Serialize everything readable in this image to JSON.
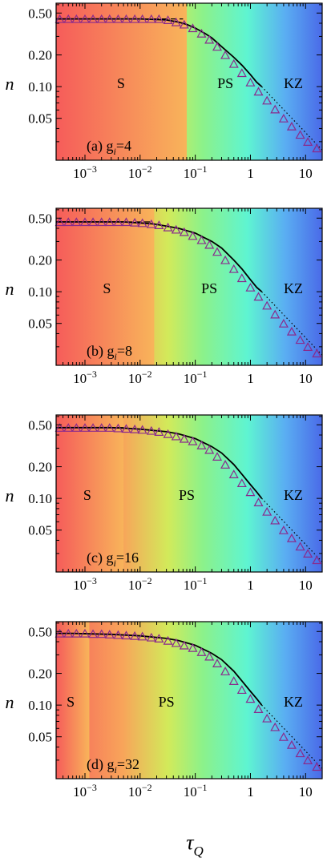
{
  "figure": {
    "xlabel": "τ",
    "xlabel_sub": "Q",
    "ylabel": "n"
  },
  "chart_data": [
    {
      "type": "line",
      "panel_label": "(a) g",
      "panel_label_sub": "i",
      "panel_label_value": "=4",
      "x_scale": "log",
      "y_scale": "log",
      "xlim": [
        0.0003,
        20
      ],
      "ylim": [
        0.02,
        0.62
      ],
      "x_ticks": [
        0.001,
        0.01,
        0.1,
        1,
        10
      ],
      "x_tick_labels": [
        {
          "base": "10",
          "exp": "−3"
        },
        {
          "base": "10",
          "exp": "−2"
        },
        {
          "base": "10",
          "exp": "−1"
        },
        {
          "base": "1",
          "exp": ""
        },
        {
          "base": "10",
          "exp": ""
        }
      ],
      "y_ticks": [
        0.05,
        0.1,
        0.2,
        0.5
      ],
      "y_tick_labels": [
        "0.05",
        "0.10",
        "0.20",
        "0.50"
      ],
      "regions": [
        {
          "label": "S",
          "from": 0.0003,
          "to": 0.07,
          "label_x": 0.0045
        },
        {
          "label": "PS",
          "from": 0.07,
          "to": 2,
          "label_x": 0.35
        },
        {
          "label": "KZ",
          "from": 2,
          "to": 20,
          "label_x": 6
        }
      ],
      "plateau": 0.44,
      "series": [
        {
          "kind": "solid",
          "x": [
            0.0003,
            0.001,
            0.005,
            0.01,
            0.03,
            0.05,
            0.07,
            0.1,
            0.15,
            0.2,
            0.3,
            0.5,
            0.7,
            1.0,
            1.3,
            1.6
          ],
          "y": [
            0.44,
            0.44,
            0.44,
            0.44,
            0.43,
            0.41,
            0.39,
            0.36,
            0.32,
            0.29,
            0.24,
            0.19,
            0.16,
            0.13,
            0.11,
            0.1
          ]
        },
        {
          "kind": "dashed",
          "x": [
            0.0003,
            0.001,
            0.005,
            0.01,
            0.03,
            0.06
          ],
          "y": [
            0.44,
            0.44,
            0.44,
            0.44,
            0.44,
            0.44
          ]
        },
        {
          "kind": "dotted",
          "x": [
            1.6,
            20
          ],
          "y": [
            0.1,
            0.025
          ]
        },
        {
          "kind": "triangles",
          "x": [
            0.00035,
            0.0005,
            0.0007,
            0.001,
            0.0014,
            0.002,
            0.0028,
            0.004,
            0.0056,
            0.008,
            0.011,
            0.016,
            0.022,
            0.032,
            0.045,
            0.063,
            0.09,
            0.13,
            0.18,
            0.25,
            0.35,
            0.5,
            0.7,
            1.0,
            1.4,
            2.0,
            2.8,
            4.0,
            5.6,
            8.0,
            11,
            16
          ],
          "y": [
            0.44,
            0.44,
            0.44,
            0.44,
            0.44,
            0.44,
            0.44,
            0.44,
            0.44,
            0.44,
            0.44,
            0.44,
            0.44,
            0.43,
            0.41,
            0.39,
            0.36,
            0.32,
            0.28,
            0.24,
            0.2,
            0.165,
            0.135,
            0.11,
            0.09,
            0.074,
            0.061,
            0.05,
            0.042,
            0.035,
            0.03,
            0.026
          ]
        }
      ]
    },
    {
      "type": "line",
      "panel_label": "(b) g",
      "panel_label_sub": "i",
      "panel_label_value": "=8",
      "x_scale": "log",
      "y_scale": "log",
      "xlim": [
        0.0003,
        20
      ],
      "ylim": [
        0.02,
        0.62
      ],
      "x_ticks": [
        0.001,
        0.01,
        0.1,
        1,
        10
      ],
      "x_tick_labels": [
        {
          "base": "10",
          "exp": "−3"
        },
        {
          "base": "10",
          "exp": "−2"
        },
        {
          "base": "10",
          "exp": "−1"
        },
        {
          "base": "1",
          "exp": ""
        },
        {
          "base": "10",
          "exp": ""
        }
      ],
      "y_ticks": [
        0.05,
        0.1,
        0.2,
        0.5
      ],
      "y_tick_labels": [
        "0.05",
        "0.10",
        "0.20",
        "0.50"
      ],
      "regions": [
        {
          "label": "S",
          "from": 0.0003,
          "to": 0.018,
          "label_x": 0.0025
        },
        {
          "label": "PS",
          "from": 0.018,
          "to": 2,
          "label_x": 0.18
        },
        {
          "label": "KZ",
          "from": 2,
          "to": 20,
          "label_x": 6
        }
      ],
      "plateau": 0.46,
      "series": [
        {
          "kind": "solid",
          "x": [
            0.0003,
            0.001,
            0.005,
            0.01,
            0.018,
            0.03,
            0.05,
            0.1,
            0.2,
            0.3,
            0.5,
            0.7,
            1.0,
            1.3,
            1.6
          ],
          "y": [
            0.46,
            0.46,
            0.46,
            0.45,
            0.44,
            0.42,
            0.4,
            0.36,
            0.3,
            0.26,
            0.2,
            0.165,
            0.13,
            0.11,
            0.1
          ]
        },
        {
          "kind": "dashed",
          "x": [
            0.0003,
            0.001,
            0.005,
            0.01,
            0.016
          ],
          "y": [
            0.46,
            0.46,
            0.46,
            0.46,
            0.46
          ]
        },
        {
          "kind": "dotted",
          "x": [
            1.6,
            20
          ],
          "y": [
            0.1,
            0.025
          ]
        },
        {
          "kind": "triangles",
          "x": [
            0.00035,
            0.0005,
            0.0007,
            0.001,
            0.0014,
            0.002,
            0.0028,
            0.004,
            0.0056,
            0.008,
            0.011,
            0.016,
            0.022,
            0.032,
            0.045,
            0.063,
            0.09,
            0.13,
            0.18,
            0.25,
            0.35,
            0.5,
            0.7,
            1.0,
            1.4,
            2.0,
            2.8,
            4.0,
            5.6,
            8.0,
            11,
            16
          ],
          "y": [
            0.46,
            0.46,
            0.46,
            0.46,
            0.46,
            0.46,
            0.46,
            0.46,
            0.46,
            0.455,
            0.45,
            0.44,
            0.43,
            0.41,
            0.39,
            0.37,
            0.34,
            0.31,
            0.28,
            0.24,
            0.2,
            0.165,
            0.135,
            0.11,
            0.09,
            0.074,
            0.061,
            0.05,
            0.042,
            0.035,
            0.03,
            0.026
          ]
        }
      ]
    },
    {
      "type": "line",
      "panel_label": "(c) g",
      "panel_label_sub": "i",
      "panel_label_value": "=16",
      "x_scale": "log",
      "y_scale": "log",
      "xlim": [
        0.0003,
        20
      ],
      "ylim": [
        0.02,
        0.62
      ],
      "x_ticks": [
        0.001,
        0.01,
        0.1,
        1,
        10
      ],
      "x_tick_labels": [
        {
          "base": "10",
          "exp": "−3"
        },
        {
          "base": "10",
          "exp": "−2"
        },
        {
          "base": "10",
          "exp": "−1"
        },
        {
          "base": "1",
          "exp": ""
        },
        {
          "base": "10",
          "exp": ""
        }
      ],
      "y_ticks": [
        0.05,
        0.1,
        0.2,
        0.5
      ],
      "y_tick_labels": [
        "0.05",
        "0.10",
        "0.20",
        "0.50"
      ],
      "regions": [
        {
          "label": "S",
          "from": 0.0003,
          "to": 0.005,
          "label_x": 0.0011
        },
        {
          "label": "PS",
          "from": 0.005,
          "to": 2,
          "label_x": 0.07
        },
        {
          "label": "KZ",
          "from": 2,
          "to": 20,
          "label_x": 6
        }
      ],
      "plateau": 0.47,
      "series": [
        {
          "kind": "solid",
          "x": [
            0.0003,
            0.001,
            0.003,
            0.005,
            0.01,
            0.03,
            0.05,
            0.1,
            0.2,
            0.3,
            0.5,
            0.7,
            1.0,
            1.3,
            1.6
          ],
          "y": [
            0.47,
            0.47,
            0.47,
            0.465,
            0.455,
            0.43,
            0.41,
            0.37,
            0.31,
            0.27,
            0.21,
            0.17,
            0.135,
            0.115,
            0.1
          ]
        },
        {
          "kind": "dashed",
          "x": [
            0.0003,
            0.001,
            0.003,
            0.005
          ],
          "y": [
            0.47,
            0.47,
            0.47,
            0.47
          ]
        },
        {
          "kind": "dotted",
          "x": [
            1.6,
            20
          ],
          "y": [
            0.1,
            0.025
          ]
        },
        {
          "kind": "triangles",
          "x": [
            0.00035,
            0.0005,
            0.0007,
            0.001,
            0.0014,
            0.002,
            0.0028,
            0.004,
            0.0056,
            0.008,
            0.011,
            0.016,
            0.022,
            0.032,
            0.045,
            0.063,
            0.09,
            0.13,
            0.18,
            0.25,
            0.35,
            0.5,
            0.7,
            1.0,
            1.4,
            2.0,
            2.8,
            4.0,
            5.6,
            8.0,
            11,
            16
          ],
          "y": [
            0.47,
            0.47,
            0.47,
            0.47,
            0.47,
            0.47,
            0.47,
            0.465,
            0.46,
            0.455,
            0.45,
            0.44,
            0.43,
            0.41,
            0.39,
            0.37,
            0.35,
            0.32,
            0.29,
            0.25,
            0.21,
            0.17,
            0.14,
            0.115,
            0.092,
            0.075,
            0.062,
            0.05,
            0.042,
            0.035,
            0.03,
            0.026
          ]
        }
      ]
    },
    {
      "type": "line",
      "panel_label": "(d) g",
      "panel_label_sub": "i",
      "panel_label_value": "=32",
      "x_scale": "log",
      "y_scale": "log",
      "xlim": [
        0.0003,
        20
      ],
      "ylim": [
        0.02,
        0.62
      ],
      "x_ticks": [
        0.001,
        0.01,
        0.1,
        1,
        10
      ],
      "x_tick_labels": [
        {
          "base": "10",
          "exp": "−3"
        },
        {
          "base": "10",
          "exp": "−2"
        },
        {
          "base": "10",
          "exp": "−1"
        },
        {
          "base": "1",
          "exp": ""
        },
        {
          "base": "10",
          "exp": ""
        }
      ],
      "y_ticks": [
        0.05,
        0.1,
        0.2,
        0.5
      ],
      "y_tick_labels": [
        "0.05",
        "0.10",
        "0.20",
        "0.50"
      ],
      "regions": [
        {
          "label": "S",
          "from": 0.0003,
          "to": 0.0012,
          "label_x": 0.00055
        },
        {
          "label": "PS",
          "from": 0.0012,
          "to": 2,
          "label_x": 0.03
        },
        {
          "label": "KZ",
          "from": 2,
          "to": 20,
          "label_x": 6
        }
      ],
      "plateau": 0.48,
      "series": [
        {
          "kind": "solid",
          "x": [
            0.0003,
            0.0006,
            0.0012,
            0.003,
            0.01,
            0.03,
            0.05,
            0.1,
            0.2,
            0.3,
            0.5,
            0.7,
            1.0,
            1.3,
            1.6
          ],
          "y": [
            0.48,
            0.48,
            0.475,
            0.47,
            0.455,
            0.43,
            0.41,
            0.37,
            0.31,
            0.27,
            0.21,
            0.17,
            0.135,
            0.115,
            0.1
          ]
        },
        {
          "kind": "dashed",
          "x": [
            0.0003,
            0.0006,
            0.0012
          ],
          "y": [
            0.48,
            0.48,
            0.48
          ]
        },
        {
          "kind": "dotted",
          "x": [
            1.6,
            20
          ],
          "y": [
            0.1,
            0.025
          ]
        },
        {
          "kind": "triangles",
          "x": [
            0.00035,
            0.0005,
            0.0007,
            0.001,
            0.0014,
            0.002,
            0.0028,
            0.004,
            0.0056,
            0.008,
            0.011,
            0.016,
            0.022,
            0.032,
            0.045,
            0.063,
            0.09,
            0.13,
            0.18,
            0.25,
            0.35,
            0.5,
            0.7,
            1.0,
            1.4,
            2.0,
            2.8,
            4.0,
            5.6,
            8.0,
            11,
            16
          ],
          "y": [
            0.48,
            0.48,
            0.48,
            0.48,
            0.475,
            0.475,
            0.47,
            0.465,
            0.46,
            0.455,
            0.45,
            0.44,
            0.43,
            0.41,
            0.39,
            0.37,
            0.35,
            0.32,
            0.29,
            0.25,
            0.21,
            0.17,
            0.14,
            0.115,
            0.092,
            0.075,
            0.062,
            0.05,
            0.042,
            0.035,
            0.03,
            0.026
          ]
        }
      ]
    }
  ]
}
